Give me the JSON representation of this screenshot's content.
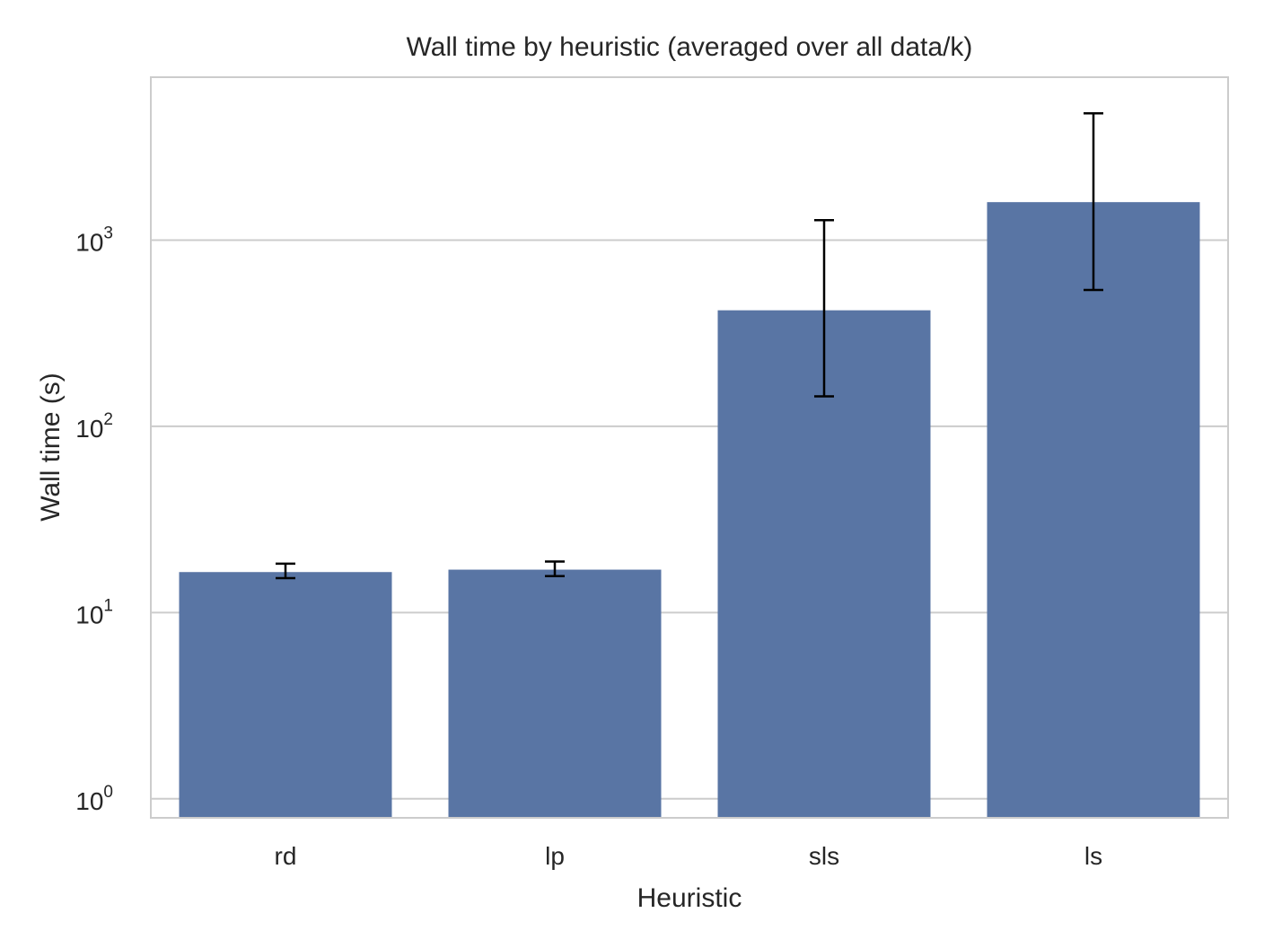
{
  "chart_data": {
    "type": "bar",
    "title": "Wall time by heuristic (averaged over all data/k)",
    "xlabel": "Heuristic",
    "ylabel": "Wall time (s)",
    "yscale": "log",
    "ylim": [
      0.79,
      7500
    ],
    "categories": [
      "rd",
      "lp",
      "sls",
      "ls"
    ],
    "values": [
      16.5,
      17,
      420,
      1600
    ],
    "error_low": [
      15.3,
      15.7,
      145,
      540
    ],
    "error_high": [
      18.3,
      18.8,
      1280,
      4800
    ],
    "yticks": [
      {
        "value": 1,
        "base": "10",
        "exp": "0"
      },
      {
        "value": 10,
        "base": "10",
        "exp": "1"
      },
      {
        "value": 100,
        "base": "10",
        "exp": "2"
      },
      {
        "value": 1000,
        "base": "10",
        "exp": "3"
      }
    ],
    "grid": "y",
    "colors": {
      "bar": "#5975a4",
      "grid": "#cccccc",
      "spine": "#cccccc",
      "error": "#000000"
    }
  }
}
